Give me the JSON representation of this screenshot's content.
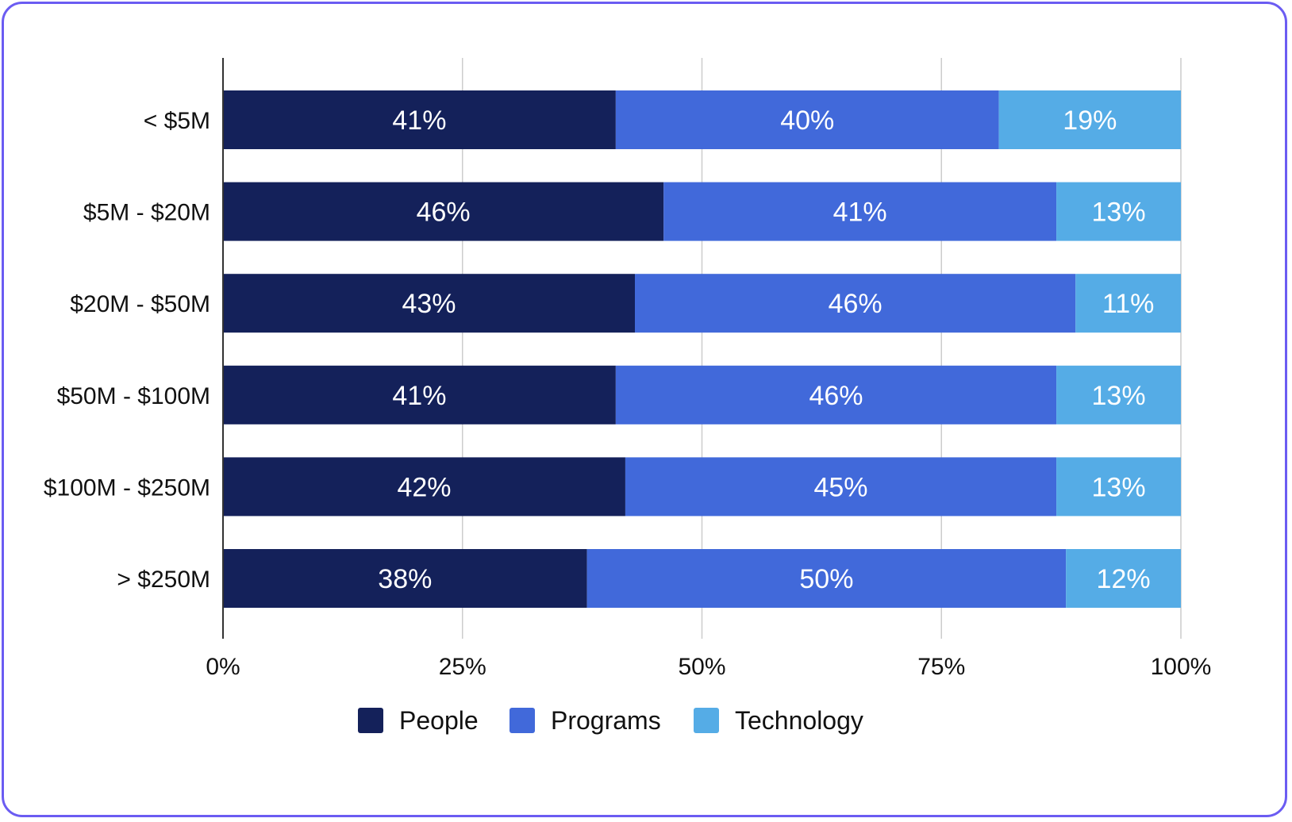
{
  "chart_data": {
    "type": "bar",
    "orientation": "horizontal",
    "stacked": true,
    "categories": [
      "< $5M",
      "$5M - $20M",
      "$20M - $50M",
      "$50M - $100M",
      "$100M - $250M",
      "> $250M"
    ],
    "series": [
      {
        "name": "People",
        "values": [
          41,
          46,
          43,
          41,
          42,
          38
        ],
        "color": "#14215a"
      },
      {
        "name": "Programs",
        "values": [
          40,
          41,
          46,
          46,
          45,
          50
        ],
        "color": "#4169da"
      },
      {
        "name": "Technology",
        "values": [
          19,
          13,
          11,
          13,
          13,
          12
        ],
        "color": "#55ace6"
      }
    ],
    "data_labels": [
      [
        "41%",
        "40%",
        "19%"
      ],
      [
        "46%",
        "41%",
        "13%"
      ],
      [
        "43%",
        "46%",
        "11%"
      ],
      [
        "41%",
        "46%",
        "13%"
      ],
      [
        "42%",
        "45%",
        "13%"
      ],
      [
        "38%",
        "50%",
        "12%"
      ]
    ],
    "xticks": [
      0,
      25,
      50,
      75,
      100
    ],
    "xtick_labels": [
      "0%",
      "25%",
      "50%",
      "75%",
      "100%"
    ],
    "xlim": [
      0,
      100
    ],
    "grid": "vertical",
    "legend": "bottom-center",
    "title": "",
    "xlabel": "",
    "ylabel": ""
  },
  "colors": {
    "frame_border": "#6b5cf2",
    "gridline": "#cccccc",
    "axis": "#333333"
  }
}
